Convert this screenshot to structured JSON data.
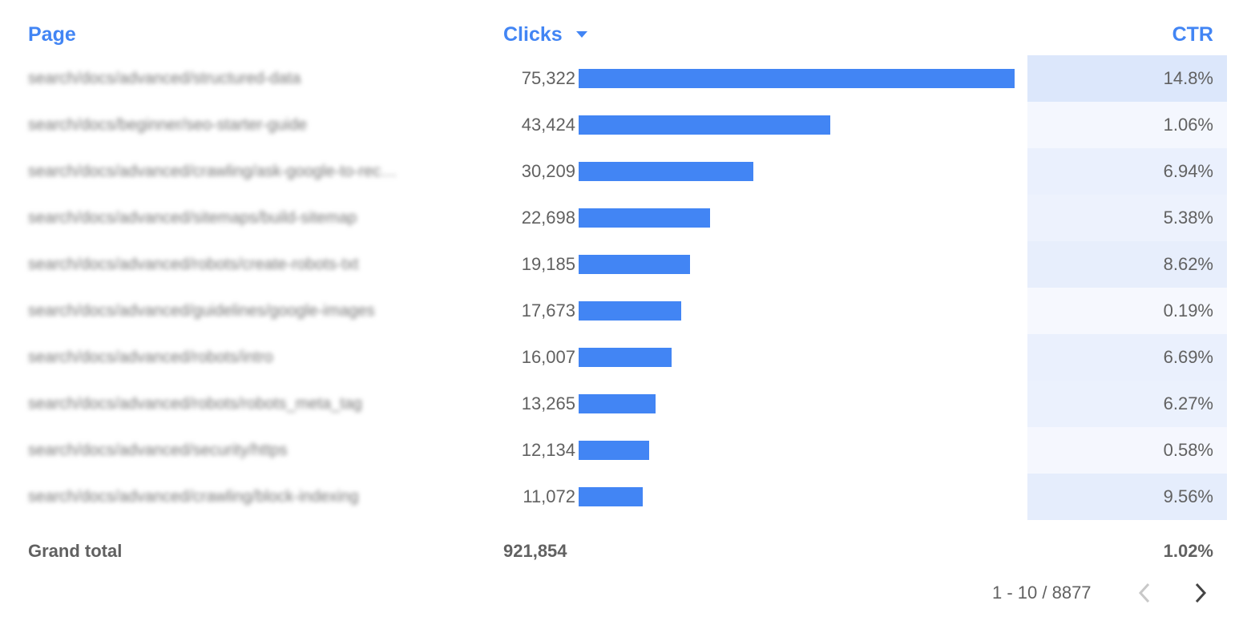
{
  "header": {
    "page": "Page",
    "clicks": "Clicks",
    "ctr": "CTR"
  },
  "table": {
    "rows": [
      {
        "page": "search/docs/advanced/structured-data",
        "clicks": {
          "value": 75322,
          "label": "75,322"
        },
        "ctr": {
          "value": 14.8,
          "label": "14.8%"
        }
      },
      {
        "page": "search/docs/beginner/seo-starter-guide",
        "clicks": {
          "value": 43424,
          "label": "43,424"
        },
        "ctr": {
          "value": 1.06,
          "label": "1.06%"
        }
      },
      {
        "page": "search/docs/advanced/crawling/ask-google-to-rec…",
        "clicks": {
          "value": 30209,
          "label": "30,209"
        },
        "ctr": {
          "value": 6.94,
          "label": "6.94%"
        }
      },
      {
        "page": "search/docs/advanced/sitemaps/build-sitemap",
        "clicks": {
          "value": 22698,
          "label": "22,698"
        },
        "ctr": {
          "value": 5.38,
          "label": "5.38%"
        }
      },
      {
        "page": "search/docs/advanced/robots/create-robots-txt",
        "clicks": {
          "value": 19185,
          "label": "19,185"
        },
        "ctr": {
          "value": 8.62,
          "label": "8.62%"
        }
      },
      {
        "page": "search/docs/advanced/guidelines/google-images",
        "clicks": {
          "value": 17673,
          "label": "17,673"
        },
        "ctr": {
          "value": 0.19,
          "label": "0.19%"
        }
      },
      {
        "page": "search/docs/advanced/robots/intro",
        "clicks": {
          "value": 16007,
          "label": "16,007"
        },
        "ctr": {
          "value": 6.69,
          "label": "6.69%"
        }
      },
      {
        "page": "search/docs/advanced/robots/robots_meta_tag",
        "clicks": {
          "value": 13265,
          "label": "13,265"
        },
        "ctr": {
          "value": 6.27,
          "label": "6.27%"
        }
      },
      {
        "page": "search/docs/advanced/security/https",
        "clicks": {
          "value": 12134,
          "label": "12,134"
        },
        "ctr": {
          "value": 0.58,
          "label": "0.58%"
        }
      },
      {
        "page": "search/docs/advanced/crawling/block-indexing",
        "clicks": {
          "value": 11072,
          "label": "11,072"
        },
        "ctr": {
          "value": 9.56,
          "label": "9.56%"
        }
      }
    ]
  },
  "footer": {
    "label": "Grand total",
    "clicks": "921,854",
    "ctr": "1.02%"
  },
  "pagination": {
    "range": "1 - 10 / 8877"
  }
}
